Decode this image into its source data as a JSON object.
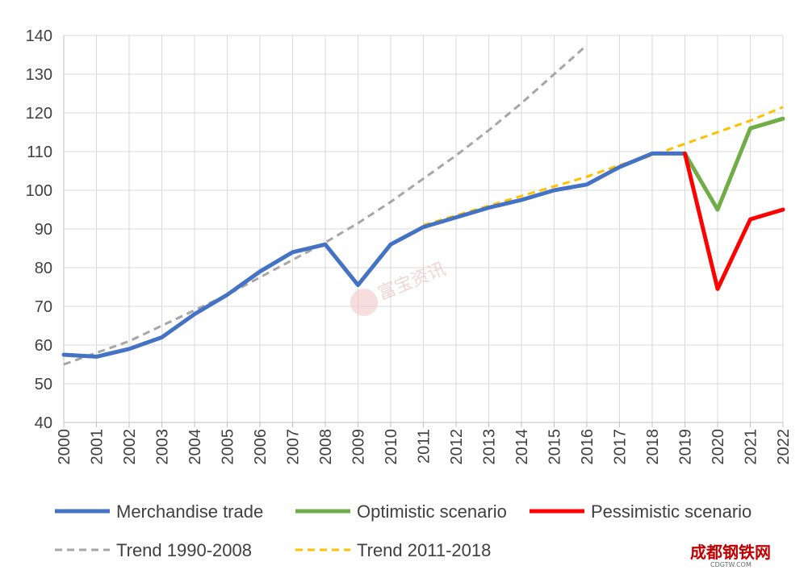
{
  "chart_data": {
    "type": "line",
    "title": "",
    "xlabel": "",
    "ylabel": "",
    "ylim": [
      40,
      140
    ],
    "yticks": [
      40,
      50,
      60,
      70,
      80,
      90,
      100,
      110,
      120,
      130,
      140
    ],
    "categories": [
      "2000",
      "2001",
      "2002",
      "2003",
      "2004",
      "2005",
      "2006",
      "2007",
      "2008",
      "2009",
      "2010",
      "2011",
      "2012",
      "2013",
      "2014",
      "2015",
      "2016",
      "2017",
      "2018",
      "2019",
      "2020",
      "2021",
      "2022"
    ],
    "grid": true,
    "legend_position": "bottom",
    "series": [
      {
        "name": "Merchandise trade",
        "color": "#4472c4",
        "style": "solid",
        "x": [
          2000,
          2001,
          2002,
          2003,
          2004,
          2005,
          2006,
          2007,
          2008,
          2009,
          2010,
          2011,
          2012,
          2013,
          2014,
          2015,
          2016,
          2017,
          2018,
          2019
        ],
        "values": [
          57.5,
          57,
          59,
          62,
          68,
          73,
          79,
          84,
          86,
          75.5,
          86,
          90.5,
          93,
          95.5,
          97.5,
          100,
          101.5,
          106,
          109.5,
          109.5
        ]
      },
      {
        "name": "Optimistic scenario",
        "color": "#70ad47",
        "style": "solid",
        "x": [
          2019,
          2020,
          2021,
          2022
        ],
        "values": [
          109.5,
          95,
          116,
          118.5
        ]
      },
      {
        "name": "Pessimistic scenario",
        "color": "#ff0000",
        "style": "solid",
        "x": [
          2019,
          2020,
          2021,
          2022
        ],
        "values": [
          109.5,
          74.5,
          92.5,
          95
        ]
      },
      {
        "name": "Trend 1990-2008",
        "color": "#a6a6a6",
        "style": "dashed",
        "x": [
          2000,
          2001,
          2002,
          2003,
          2004,
          2005,
          2006,
          2007,
          2008,
          2009,
          2010,
          2011,
          2012,
          2013,
          2014,
          2015,
          2016
        ],
        "values": [
          55,
          58,
          61,
          65,
          69,
          73,
          77.5,
          82,
          86.5,
          91.5,
          97,
          103,
          109,
          115.5,
          122.5,
          130,
          137.5
        ]
      },
      {
        "name": "Trend 2011-2018",
        "color": "#ffc000",
        "style": "dashed",
        "x": [
          2011,
          2012,
          2013,
          2014,
          2015,
          2016,
          2017,
          2018,
          2019,
          2020,
          2021,
          2022
        ],
        "values": [
          91,
          93.5,
          96,
          98.5,
          101,
          103.5,
          106.5,
          109,
          112,
          115,
          118,
          121.5
        ]
      }
    ]
  },
  "watermark": {
    "text": "富宝资讯"
  },
  "logo": {
    "text": "成都钢铁网",
    "subtext": "CDGTW.COM"
  }
}
